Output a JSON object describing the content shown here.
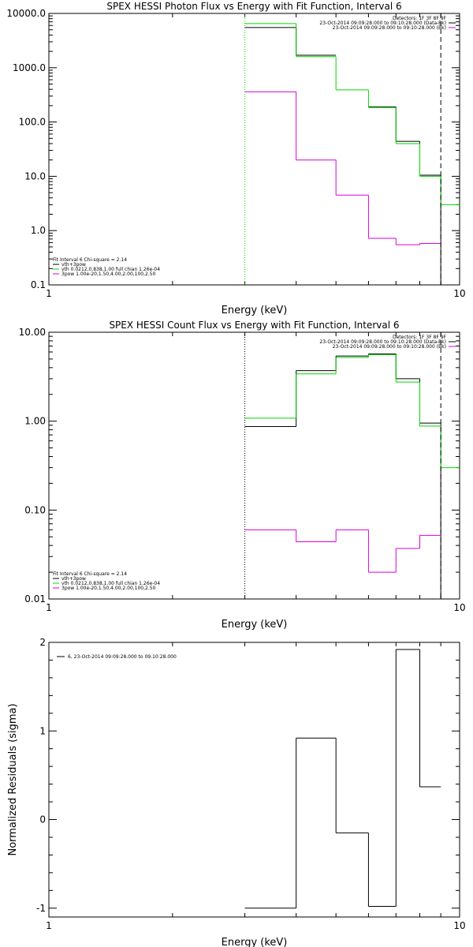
{
  "chart_data": [
    {
      "type": "line",
      "title": "SPEX HESSI Photon Flux vs Energy with Fit Function, Interval 6",
      "xlabel": "Energy (keV)",
      "ylabel": "",
      "x_scale": "log",
      "y_scale": "log",
      "xlim": [
        1,
        10
      ],
      "ylim": [
        0.1,
        10000
      ],
      "xticks": [
        "1",
        "10"
      ],
      "yticks": [
        "0.1",
        "1.0",
        "10.0",
        "100.0",
        "1000.0",
        "10000.0"
      ],
      "edges": [
        3,
        4,
        5,
        6,
        7,
        8,
        9,
        10
      ],
      "series": [
        {
          "name": "vth+3pow",
          "color": "#000000",
          "values": [
            5500,
            1700,
            null,
            190,
            44,
            10.5,
            0.1
          ]
        },
        {
          "name": "vth 0.0212,0.838,1.00  full chian 1.26e-04",
          "color": "#00d800",
          "values": [
            6500,
            1600,
            390,
            185,
            40,
            10,
            3
          ]
        },
        {
          "name": "3pow 1.00e-20,1.50,4.00,2.00,100,2.50",
          "color": "#d800d8",
          "values": [
            360,
            20,
            4.5,
            0.72,
            0.55,
            0.58,
            null
          ]
        }
      ],
      "legend_top": [
        "Detectors: 1F 3F 8F 9F",
        "23-Oct-2014 09:09:28.000 to 09:10:28.000 (Data-Bk)",
        "23-Oct-2014 09:09:28.000 to 09:10:28.000 (Bk)"
      ],
      "legend_top_colors": [
        "",
        "#000000",
        "#d800d8"
      ],
      "legend_bottom_header": "Fit Interval  6    Chi-square = 2.14",
      "vlines": [
        {
          "x": 3,
          "color": "#00d800",
          "style": "dotted"
        },
        {
          "x": 9,
          "color": "#000000",
          "style": "dashed"
        }
      ]
    },
    {
      "type": "line",
      "title": "SPEX HESSI Count Flux vs Energy with Fit Function, Interval 6",
      "xlabel": "Energy (keV)",
      "ylabel": "",
      "x_scale": "log",
      "y_scale": "log",
      "xlim": [
        1,
        10
      ],
      "ylim": [
        0.01,
        10
      ],
      "xticks": [
        "1",
        "10"
      ],
      "yticks": [
        "0.01",
        "0.10",
        "1.00",
        "10.00"
      ],
      "edges": [
        3,
        4,
        5,
        6,
        7,
        8,
        9,
        10
      ],
      "series": [
        {
          "name": "vth+3pow",
          "color": "#000000",
          "values": [
            0.87,
            3.7,
            5.4,
            5.7,
            3.0,
            0.95,
            0.01
          ]
        },
        {
          "name": "vth 0.0212,0.838,1.00  full chian 1.26e-04",
          "color": "#00d800",
          "values": [
            1.08,
            3.4,
            5.2,
            5.6,
            2.75,
            0.88,
            0.3
          ]
        },
        {
          "name": "3pow 1.00e-20,1.50,4.00,2.00,100,2.50",
          "color": "#d800d8",
          "values": [
            0.06,
            0.044,
            0.06,
            0.02,
            0.037,
            0.052,
            null
          ]
        }
      ],
      "legend_top": [
        "Detectors: 1F 3F 8F 9F",
        "23-Oct-2014 09:09:28.000 to 09:10:28.000 (Data-Bk)",
        "23-Oct-2014 09:09:28.000 to 09:10:28.000 (Bk)"
      ],
      "legend_top_colors": [
        "",
        "#000000",
        "#d800d8"
      ],
      "legend_bottom_header": "Fit Interval  6    Chi-square = 2.14",
      "vlines": [
        {
          "x": 3,
          "color": "#000000",
          "style": "dotted"
        },
        {
          "x": 9,
          "color": "#000000",
          "style": "dashed"
        }
      ]
    },
    {
      "type": "line",
      "title": "",
      "xlabel": "Energy (keV)",
      "ylabel": "Normalized Residuals (sigma)",
      "x_scale": "log",
      "y_scale": "linear",
      "xlim": [
        1,
        10
      ],
      "ylim": [
        -1.1,
        2.0
      ],
      "xticks": [
        "1",
        "10"
      ],
      "yticks": [
        "-1",
        "0",
        "1",
        "2"
      ],
      "edges": [
        3,
        4,
        5,
        6,
        7,
        8,
        9
      ],
      "series": [
        {
          "name": "6, 23-Oct-2014 09:09:28.000 to 09:10:28.000",
          "color": "#000000",
          "values": [
            -1.0,
            0.92,
            -0.15,
            -0.98,
            1.92,
            0.37
          ]
        }
      ]
    }
  ]
}
